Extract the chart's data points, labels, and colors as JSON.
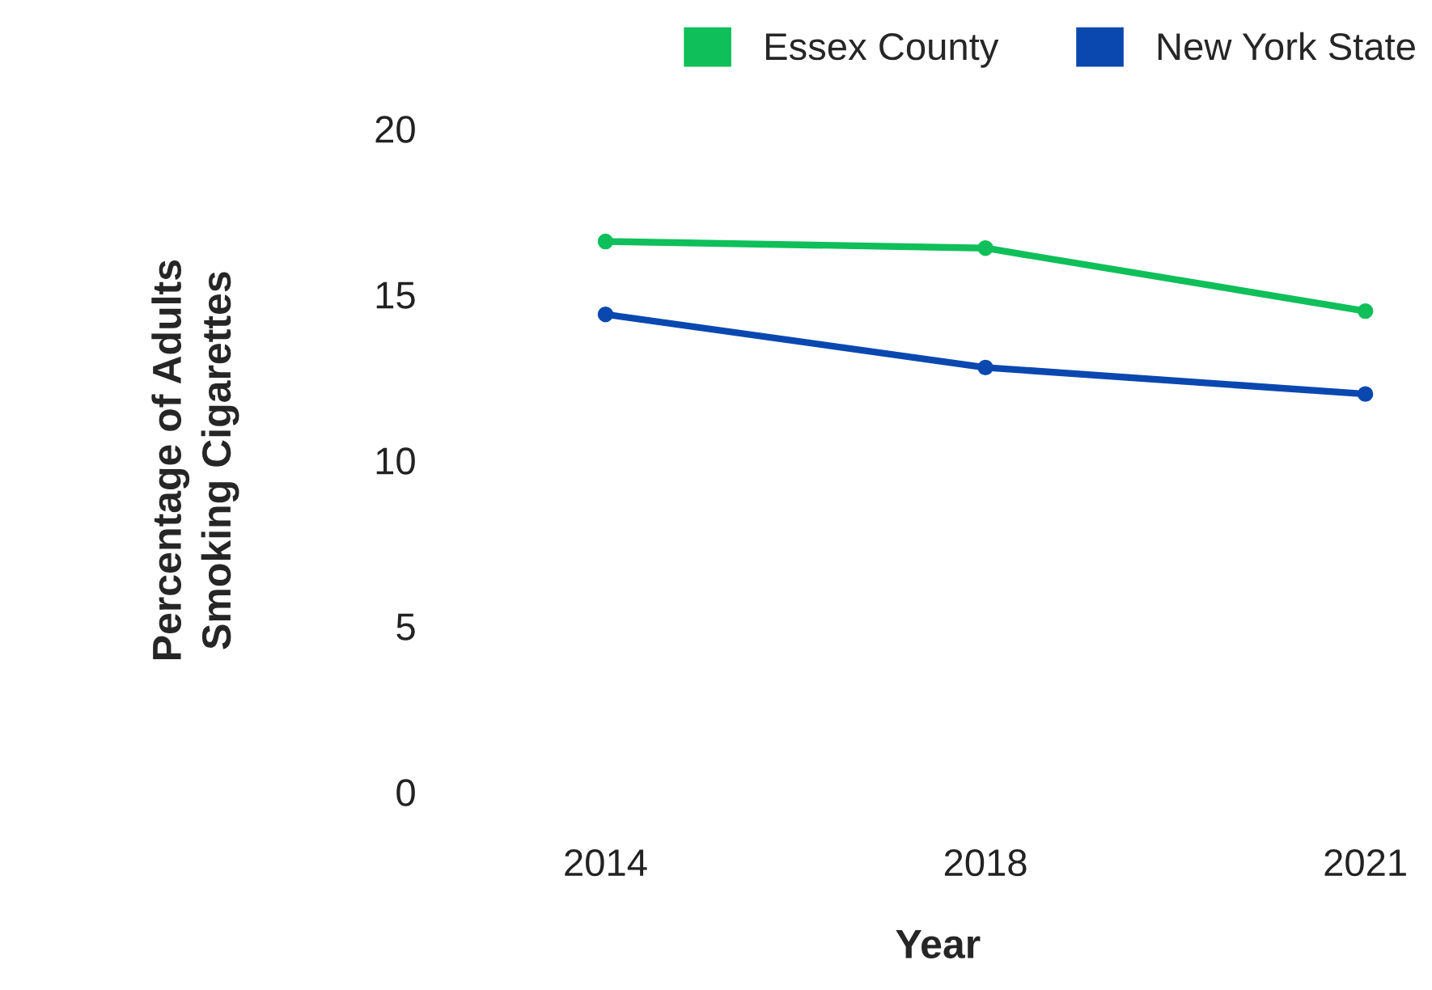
{
  "chart_data": {
    "type": "line",
    "xlabel": "Year",
    "ylabel": "Percentage of Adults\nSmoking Cigarettes",
    "categories": [
      "2014",
      "2018",
      "2021"
    ],
    "series": [
      {
        "name": "Essex County",
        "color": "#0fbf5a",
        "values": [
          16.6,
          16.4,
          14.5
        ]
      },
      {
        "name": "New York State",
        "color": "#0a48b0",
        "values": [
          14.4,
          12.8,
          12.0
        ]
      }
    ],
    "ylim": [
      0,
      20
    ],
    "yticks": [
      0,
      5,
      10,
      15,
      20
    ],
    "grid": false,
    "legend": "top",
    "marker": "circle",
    "line_style": "solid"
  }
}
